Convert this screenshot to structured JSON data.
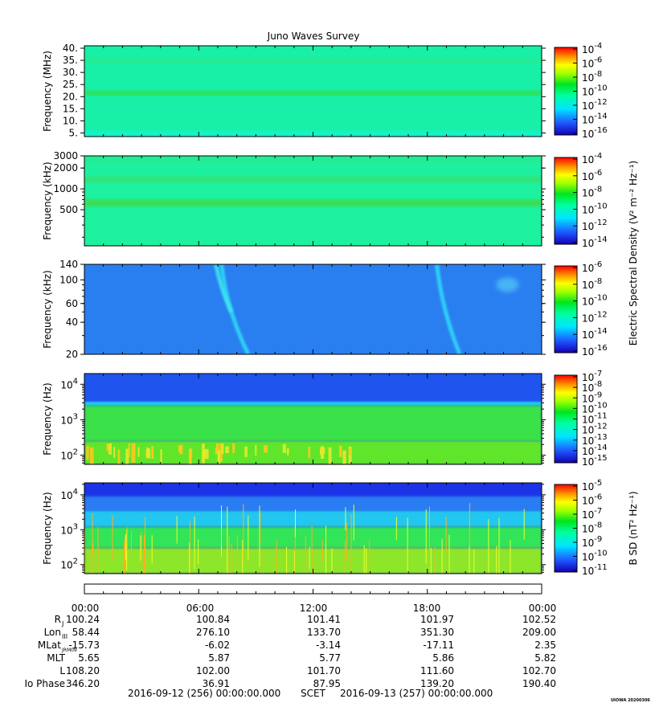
{
  "title": "Juno Waves Survey",
  "stamp": "UIOWA 20200306",
  "chart_data": [
    {
      "type": "heatmap",
      "ylabel": "Frequency (MHz)",
      "yscale": "linear",
      "ylim": [
        3.5,
        41
      ],
      "yticks": [
        {
          "v": 40,
          "l": "40."
        },
        {
          "v": 35,
          "l": "35."
        },
        {
          "v": 30,
          "l": "30."
        },
        {
          "v": 25,
          "l": "25."
        },
        {
          "v": 20,
          "l": "20."
        },
        {
          "v": 15,
          "l": "15."
        },
        {
          "v": 10,
          "l": "10."
        },
        {
          "v": 5,
          "l": "5."
        }
      ],
      "colorbar": {
        "scale": "log",
        "ticks": [
          {
            "exp": "-4"
          },
          {
            "exp": "-6"
          },
          {
            "exp": "-8"
          },
          {
            "exp": "-10"
          },
          {
            "exp": "-12"
          },
          {
            "exp": "-14"
          },
          {
            "exp": "-16"
          }
        ]
      },
      "background": "#17f0a6",
      "features": [
        {
          "kind": "band",
          "y0": 20.5,
          "y1": 22.5,
          "color": "#2de35c"
        },
        {
          "kind": "band",
          "y0": 34,
          "y1": 36,
          "color": "#26eb94"
        },
        {
          "kind": "band",
          "y0": 3.5,
          "y1": 6,
          "color": "#19f2c7"
        }
      ]
    },
    {
      "type": "heatmap",
      "ylabel": "Frequency (kHz)",
      "yscale": "log",
      "ylim": [
        150,
        3000
      ],
      "yticks": [
        {
          "v": 3000,
          "l": "3000"
        },
        {
          "v": 2000,
          "l": "2000"
        },
        {
          "v": 1000,
          "l": "1000"
        },
        {
          "v": 500,
          "l": "500"
        }
      ],
      "colorbar": {
        "scale": "log",
        "label": "Electric Spectral Density (V² m⁻² Hz⁻¹)",
        "ticks": [
          {
            "exp": "-4"
          },
          {
            "exp": "-6"
          },
          {
            "exp": "-8"
          },
          {
            "exp": "-10"
          },
          {
            "exp": "-12"
          },
          {
            "exp": "-14"
          }
        ]
      },
      "background": "#1df09e",
      "features": [
        {
          "kind": "band",
          "y0": 1250,
          "y1": 1500,
          "color": "#30e37a"
        },
        {
          "kind": "band",
          "y0": 560,
          "y1": 700,
          "color": "#3ade53"
        },
        {
          "kind": "band",
          "y0": 2400,
          "y1": 3000,
          "color": "#22ed93"
        }
      ]
    },
    {
      "type": "heatmap",
      "ylabel": "Frequency (kHz)",
      "yscale": "log",
      "ylim": [
        20,
        140
      ],
      "yticks": [
        {
          "v": 140,
          "l": "140"
        },
        {
          "v": 100,
          "l": "100"
        },
        {
          "v": 60,
          "l": "60"
        },
        {
          "v": 40,
          "l": "40"
        },
        {
          "v": 20,
          "l": "20"
        }
      ],
      "colorbar": {
        "scale": "log",
        "ticks": [
          {
            "exp": "-6"
          },
          {
            "exp": "-8"
          },
          {
            "exp": "-10"
          },
          {
            "exp": "-12"
          },
          {
            "exp": "-14"
          },
          {
            "exp": "-16"
          }
        ]
      },
      "background": "#2a7ff0",
      "features": [
        {
          "kind": "streak",
          "t0": 7.2,
          "t1": 8.6,
          "y0": 140,
          "y1": 20,
          "color": "#2fd9f5"
        },
        {
          "kind": "streak",
          "t0": 6.9,
          "t1": 7.7,
          "y0": 140,
          "y1": 50,
          "color": "#3ee8f0"
        },
        {
          "kind": "streak",
          "t0": 18.5,
          "t1": 19.7,
          "y0": 140,
          "y1": 20,
          "color": "#2fd9f5"
        },
        {
          "kind": "blob",
          "t": 22.2,
          "y": 90,
          "color": "#46b4f5"
        }
      ]
    },
    {
      "type": "heatmap",
      "ylabel": "Frequency (Hz)",
      "yscale": "log",
      "ylim": [
        55,
        20000
      ],
      "yticks": [
        {
          "v": 10000,
          "base": "10",
          "exp": "4"
        },
        {
          "v": 1000,
          "base": "10",
          "exp": "3"
        },
        {
          "v": 100,
          "base": "10",
          "exp": "2"
        }
      ],
      "colorbar": {
        "scale": "log",
        "ticks": [
          {
            "exp": "-7"
          },
          {
            "exp": "-8"
          },
          {
            "exp": "-9"
          },
          {
            "exp": "-10"
          },
          {
            "exp": "-11"
          },
          {
            "exp": "-12"
          },
          {
            "exp": "-13"
          },
          {
            "exp": "-14"
          },
          {
            "exp": "-15"
          }
        ]
      },
      "background": "#1f55ee",
      "features": [
        {
          "kind": "band",
          "y0": 2500,
          "y1": 3200,
          "color": "#1fd4f0"
        },
        {
          "kind": "band",
          "y0": 250,
          "y1": 2500,
          "color": "#3be14a"
        },
        {
          "kind": "band",
          "y0": 55,
          "y1": 250,
          "color": "#5ee62c"
        },
        {
          "kind": "spots",
          "t0": 0,
          "t1": 14,
          "y0": 60,
          "y1": 220,
          "color": "#e8e82a"
        }
      ]
    },
    {
      "type": "heatmap",
      "ylabel": "Frequency (Hz)",
      "yscale": "log",
      "ylim": [
        55,
        22000
      ],
      "yticks": [
        {
          "v": 10000,
          "base": "10",
          "exp": "4"
        },
        {
          "v": 1000,
          "base": "10",
          "exp": "3"
        },
        {
          "v": 100,
          "base": "10",
          "exp": "2"
        }
      ],
      "colorbar": {
        "scale": "log",
        "label": "B SD (nT² Hz⁻¹)",
        "ticks": [
          {
            "exp": "-5"
          },
          {
            "exp": "-6"
          },
          {
            "exp": "-7"
          },
          {
            "exp": "-8"
          },
          {
            "exp": "-9"
          },
          {
            "exp": "-10"
          },
          {
            "exp": "-11"
          }
        ]
      },
      "background": "#1c34e8",
      "features": [
        {
          "kind": "band",
          "y0": 3500,
          "y1": 9000,
          "color": "#2b7cf2"
        },
        {
          "kind": "band",
          "y0": 1200,
          "y1": 3500,
          "color": "#22c7f0"
        },
        {
          "kind": "band",
          "y0": 300,
          "y1": 1200,
          "color": "#33e458"
        },
        {
          "kind": "band",
          "y0": 55,
          "y1": 300,
          "color": "#8ee62a"
        }
      ]
    }
  ],
  "xaxis": {
    "range_hours": [
      0,
      24
    ],
    "major_hours": [
      0,
      6,
      12,
      18,
      24
    ],
    "minor_hours": [
      1,
      2,
      3,
      4,
      5,
      7,
      8,
      9,
      10,
      11,
      13,
      14,
      15,
      16,
      17,
      19,
      20,
      21,
      22,
      23
    ],
    "tick_labels": [
      "00:00",
      "06:00",
      "12:00",
      "18:00",
      "00:00"
    ]
  },
  "ephemeris": [
    {
      "label": "R",
      "sub": "J",
      "values": [
        "100.24",
        "100.84",
        "101.41",
        "101.97",
        "102.52"
      ]
    },
    {
      "label": "Lon",
      "sub": "III",
      "values": [
        "58.44",
        "276.10",
        "133.70",
        "351.30",
        "209.00"
      ]
    },
    {
      "label": "MLat",
      "sub": "JRM09",
      "values": [
        "-15.73",
        "-6.02",
        "-3.14",
        "-17.11",
        "2.35"
      ]
    },
    {
      "label": "MLT",
      "sub": "",
      "values": [
        "5.65",
        "5.87",
        "5.77",
        "5.86",
        "5.82"
      ]
    },
    {
      "label": "L",
      "sub": "",
      "values": [
        "108.20",
        "102.00",
        "101.70",
        "111.60",
        "102.70"
      ]
    },
    {
      "label": "Io Phase",
      "sub": "",
      "values": [
        "346.20",
        "36.91",
        "87.95",
        "139.20",
        "190.40"
      ]
    }
  ],
  "footer": {
    "start": "2016-09-12 (256) 00:00:00.000",
    "mid": "SCET",
    "end": "2016-09-13 (257) 00:00:00.000"
  }
}
